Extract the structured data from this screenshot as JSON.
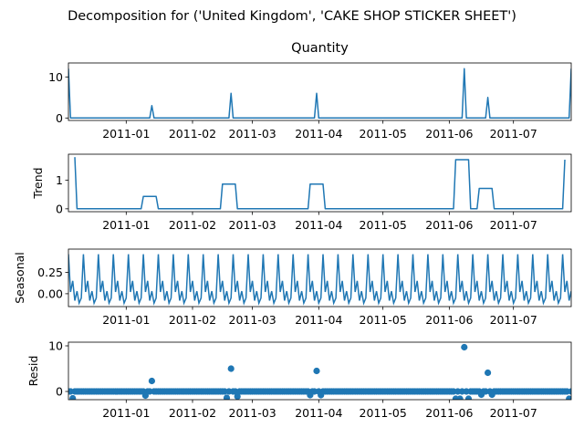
{
  "figure": {
    "suptitle": "Decomposition for ('United Kingdom', 'CAKE SHOP  STICKER SHEET')",
    "line_color": "#1f77b4"
  },
  "chart_data": [
    {
      "type": "line",
      "panel": "observed",
      "title": "Quantity",
      "ylabel": "",
      "ylim": [
        -0.6,
        13.4
      ],
      "yticks": [
        0,
        10
      ],
      "xlim": [
        "2010-12-05",
        "2011-07-28"
      ],
      "xticks": [
        "2011-01",
        "2011-02",
        "2011-03",
        "2011-04",
        "2011-05",
        "2011-06",
        "2011-07"
      ],
      "x": [
        "2010-12-05",
        "2010-12-06",
        "2011-01-12",
        "2011-01-13",
        "2011-01-14",
        "2011-02-18",
        "2011-02-19",
        "2011-02-20",
        "2011-03-30",
        "2011-03-31",
        "2011-04-01",
        "2011-06-07",
        "2011-06-08",
        "2011-06-09",
        "2011-06-18",
        "2011-06-19",
        "2011-06-20",
        "2011-07-27",
        "2011-07-28"
      ],
      "values": [
        12,
        0,
        0,
        3,
        0,
        0,
        6,
        0,
        0,
        6,
        0,
        0,
        12,
        0,
        0,
        5,
        0,
        0,
        12
      ]
    },
    {
      "type": "line",
      "panel": "trend",
      "title": "",
      "ylabel": "Trend",
      "ylim": [
        -0.1,
        1.9
      ],
      "yticks": [
        0,
        1
      ],
      "xlim": [
        "2010-12-05",
        "2011-07-28"
      ],
      "xticks": [
        "2011-01",
        "2011-02",
        "2011-03",
        "2011-04",
        "2011-05",
        "2011-06",
        "2011-07"
      ],
      "x": [
        "2010-12-08",
        "2010-12-09",
        "2011-01-08",
        "2011-01-09",
        "2011-01-15",
        "2011-01-16",
        "2011-02-14",
        "2011-02-15",
        "2011-02-21",
        "2011-02-22",
        "2011-03-27",
        "2011-03-28",
        "2011-04-03",
        "2011-04-04",
        "2011-06-03",
        "2011-06-04",
        "2011-06-10",
        "2011-06-11",
        "2011-06-14",
        "2011-06-15",
        "2011-06-21",
        "2011-06-22",
        "2011-07-24",
        "2011-07-25"
      ],
      "values": [
        1.8,
        0,
        0,
        0.43,
        0.43,
        0,
        0,
        0.86,
        0.86,
        0,
        0,
        0.86,
        0.86,
        0,
        0,
        1.71,
        1.71,
        0,
        0,
        0.71,
        0.71,
        0,
        0,
        1.71
      ]
    },
    {
      "type": "line",
      "panel": "seasonal",
      "title": "",
      "ylabel": "Seasonal",
      "ylim": [
        -0.15,
        0.52
      ],
      "yticks": [
        -0.0,
        0.25
      ],
      "ytick_labels": [
        "0.00",
        "0.25"
      ],
      "xlim": [
        "2010-12-05",
        "2011-07-28"
      ],
      "xticks": [
        "2011-01",
        "2011-02",
        "2011-03",
        "2011-04",
        "2011-05",
        "2011-06",
        "2011-07"
      ],
      "period_days": 7,
      "pattern": [
        0.46,
        0.02,
        0.15,
        -0.08,
        0.03,
        -0.11,
        -0.05
      ]
    },
    {
      "type": "scatter",
      "panel": "resid",
      "title": "",
      "ylabel": "Resid",
      "ylim": [
        -1.8,
        10.8
      ],
      "yticks": [
        0,
        10
      ],
      "xlim": [
        "2010-12-05",
        "2011-07-28"
      ],
      "xticks": [
        "2011-01",
        "2011-02",
        "2011-03",
        "2011-04",
        "2011-05",
        "2011-06",
        "2011-07"
      ],
      "baseline": 0,
      "outliers": [
        {
          "x": "2010-12-07",
          "y": -1.5
        },
        {
          "x": "2011-01-13",
          "y": 2.3
        },
        {
          "x": "2011-01-10",
          "y": -0.9
        },
        {
          "x": "2011-02-17",
          "y": -1.4
        },
        {
          "x": "2011-02-19",
          "y": 5.0
        },
        {
          "x": "2011-02-22",
          "y": -1.1
        },
        {
          "x": "2011-03-28",
          "y": -0.8
        },
        {
          "x": "2011-03-31",
          "y": 4.5
        },
        {
          "x": "2011-04-02",
          "y": -0.8
        },
        {
          "x": "2011-06-04",
          "y": -1.6
        },
        {
          "x": "2011-06-06",
          "y": -1.6
        },
        {
          "x": "2011-06-08",
          "y": 9.7
        },
        {
          "x": "2011-06-10",
          "y": -1.6
        },
        {
          "x": "2011-06-16",
          "y": -0.7
        },
        {
          "x": "2011-06-19",
          "y": 4.1
        },
        {
          "x": "2011-06-21",
          "y": -0.7
        },
        {
          "x": "2011-07-27",
          "y": -1.6
        }
      ]
    }
  ]
}
